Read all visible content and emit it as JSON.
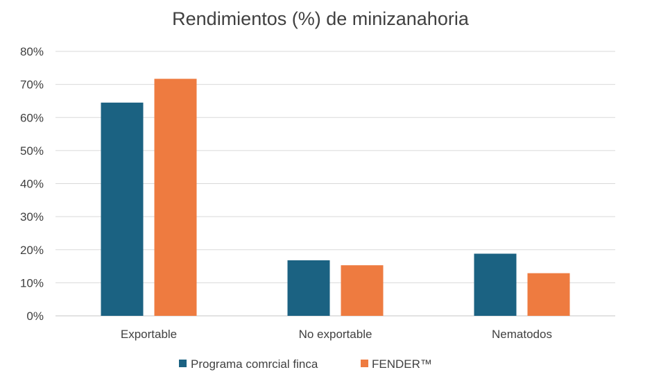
{
  "chart_data": {
    "type": "bar",
    "title": "Rendimientos (%) de minizanahoria",
    "categories": [
      "Exportable",
      "No exportable",
      "Nematodos"
    ],
    "series": [
      {
        "name": "Programa comrcial finca",
        "values": [
          64.5,
          16.8,
          18.8
        ],
        "color": "#1B6282"
      },
      {
        "name": "FENDER™",
        "values": [
          71.7,
          15.3,
          12.9
        ],
        "color": "#EE7B40"
      }
    ],
    "ylim": [
      0,
      80
    ],
    "yticks": [
      "0%",
      "10%",
      "20%",
      "30%",
      "40%",
      "50%",
      "60%",
      "70%",
      "80%"
    ],
    "ytick_values": [
      0,
      10,
      20,
      30,
      40,
      50,
      60,
      70,
      80
    ],
    "grid": true,
    "legend_position": "bottom"
  }
}
